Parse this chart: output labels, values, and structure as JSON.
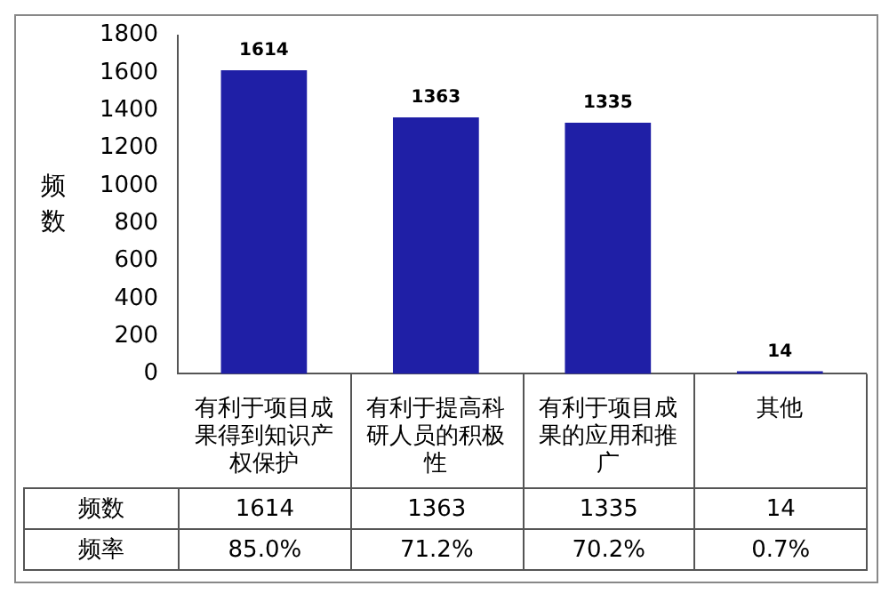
{
  "chart_data": {
    "type": "bar",
    "ylabel": "频数",
    "categories": [
      "有利于项目成果得到知识产权保护",
      "有利于提高科研人员的积极性",
      "有利于项目成果的应用和推广",
      "其他"
    ],
    "values": [
      1614,
      1363,
      1335,
      14
    ],
    "value_labels": [
      "1614",
      "1363",
      "1335",
      "14"
    ],
    "color": "#1f1fa6",
    "ylim": [
      0,
      1800
    ],
    "yticks": [
      0,
      200,
      400,
      600,
      800,
      1000,
      1200,
      1400,
      1600,
      1800
    ],
    "data_labels": true,
    "annotations": [
      "频率",
      "85.0%",
      "71.2%",
      "70.2%",
      "0.7%"
    ]
  }
}
